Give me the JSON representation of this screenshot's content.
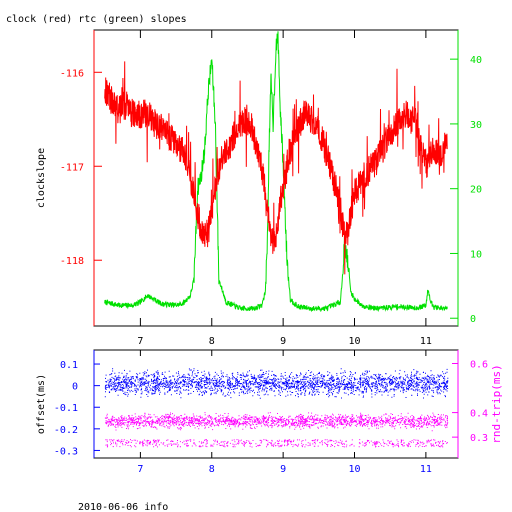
{
  "title": "clock (red) rtc (green) slopes",
  "footer": "2010-06-06 info",
  "colors": {
    "clock": "#ff0000",
    "rtc": "#00e000",
    "offset": "#0000ff",
    "roundtrip": "#ff00ff",
    "axis": "#000000"
  },
  "chart_data": [
    {
      "type": "line",
      "title": "clock (red) rtc (green) slopes",
      "xlim": [
        6.35,
        11.45
      ],
      "xticks": [
        "7",
        "8",
        "9",
        "10",
        "11"
      ],
      "ylabel": "clockslope",
      "ylim": [
        -118.7,
        -115.55
      ],
      "yticks_left": [
        "-116",
        "-117",
        "-118"
      ],
      "y2lim": [
        -1.2,
        44.5
      ],
      "yticks_right": [
        "0",
        "10",
        "20",
        "30",
        "40"
      ],
      "series": [
        {
          "name": "clock",
          "axis": "left",
          "x": [
            6.5,
            6.6,
            6.7,
            6.8,
            6.9,
            7.0,
            7.1,
            7.2,
            7.3,
            7.4,
            7.5,
            7.6,
            7.7,
            7.75,
            7.8,
            7.85,
            7.9,
            7.95,
            8.0,
            8.05,
            8.1,
            8.2,
            8.3,
            8.4,
            8.5,
            8.6,
            8.7,
            8.75,
            8.8,
            8.85,
            8.9,
            8.95,
            9.0,
            9.1,
            9.2,
            9.3,
            9.4,
            9.5,
            9.6,
            9.7,
            9.8,
            9.85,
            9.9,
            9.95,
            10.0,
            10.1,
            10.2,
            10.3,
            10.4,
            10.5,
            10.6,
            10.7,
            10.8,
            10.9,
            11.0,
            11.1,
            11.2,
            11.3
          ],
          "values": [
            -116.2,
            -116.3,
            -116.4,
            -116.35,
            -116.45,
            -116.45,
            -116.45,
            -116.55,
            -116.6,
            -116.7,
            -116.75,
            -116.85,
            -117.1,
            -117.3,
            -117.5,
            -117.65,
            -117.75,
            -117.7,
            -117.5,
            -117.2,
            -117.0,
            -116.85,
            -116.7,
            -116.55,
            -116.5,
            -116.7,
            -117.0,
            -117.3,
            -117.6,
            -117.8,
            -117.75,
            -117.45,
            -117.2,
            -116.85,
            -116.6,
            -116.45,
            -116.5,
            -116.6,
            -116.85,
            -117.1,
            -117.45,
            -117.7,
            -117.75,
            -117.5,
            -117.3,
            -117.15,
            -117.05,
            -116.95,
            -116.8,
            -116.65,
            -116.55,
            -116.45,
            -116.5,
            -116.6,
            -117.0,
            -116.8,
            -116.9,
            -116.7
          ]
        },
        {
          "name": "rtc",
          "axis": "right",
          "x": [
            6.5,
            6.7,
            6.9,
            7.0,
            7.1,
            7.3,
            7.5,
            7.6,
            7.7,
            7.75,
            7.78,
            7.8,
            7.85,
            7.9,
            7.95,
            8.0,
            8.05,
            8.1,
            8.2,
            8.4,
            8.6,
            8.7,
            8.75,
            8.78,
            8.8,
            8.83,
            8.86,
            8.9,
            8.93,
            8.96,
            9.0,
            9.05,
            9.1,
            9.2,
            9.4,
            9.6,
            9.8,
            9.83,
            9.86,
            9.9,
            9.95,
            10.0,
            10.05,
            10.1,
            10.3,
            10.6,
            10.9,
            11.0,
            11.03,
            11.06,
            11.1,
            11.2,
            11.3
          ],
          "values": [
            2.5,
            2.0,
            2.0,
            2.5,
            3.5,
            2.2,
            2.0,
            2.3,
            3.5,
            6.0,
            14.0,
            20.0,
            22.0,
            26.0,
            35.0,
            40.0,
            30.0,
            6.0,
            2.5,
            1.5,
            1.5,
            2.0,
            4.0,
            12.0,
            25.0,
            37.0,
            30.0,
            42.0,
            43.0,
            32.0,
            24.0,
            10.0,
            3.0,
            1.8,
            1.5,
            1.5,
            2.5,
            6.0,
            12.0,
            9.0,
            4.0,
            3.0,
            2.5,
            2.0,
            1.5,
            1.8,
            1.6,
            2.0,
            4.5,
            3.0,
            1.8,
            1.5,
            1.5
          ]
        }
      ]
    },
    {
      "type": "scatter",
      "xlim": [
        6.35,
        11.45
      ],
      "xticks": [
        "7",
        "8",
        "9",
        "10",
        "11"
      ],
      "ylabel": "offset(ms)",
      "ylim": [
        -0.335,
        0.165
      ],
      "yticks_left": [
        "0.1",
        "0",
        "-0.1",
        "-0.2",
        "-0.3"
      ],
      "y2label": "rnd-trip(ms)",
      "y2lim": [
        0.215,
        0.655
      ],
      "yticks_right": [
        "0.6",
        "0.4",
        "0.3"
      ],
      "x_range": [
        6.5,
        11.3
      ],
      "series": [
        {
          "name": "offset",
          "axis": "left",
          "center": 0.01,
          "spread": 0.07
        },
        {
          "name": "rnd-trip",
          "axis": "right",
          "center": 0.365,
          "spread": 0.04,
          "outlier_band": 0.275
        }
      ]
    }
  ]
}
